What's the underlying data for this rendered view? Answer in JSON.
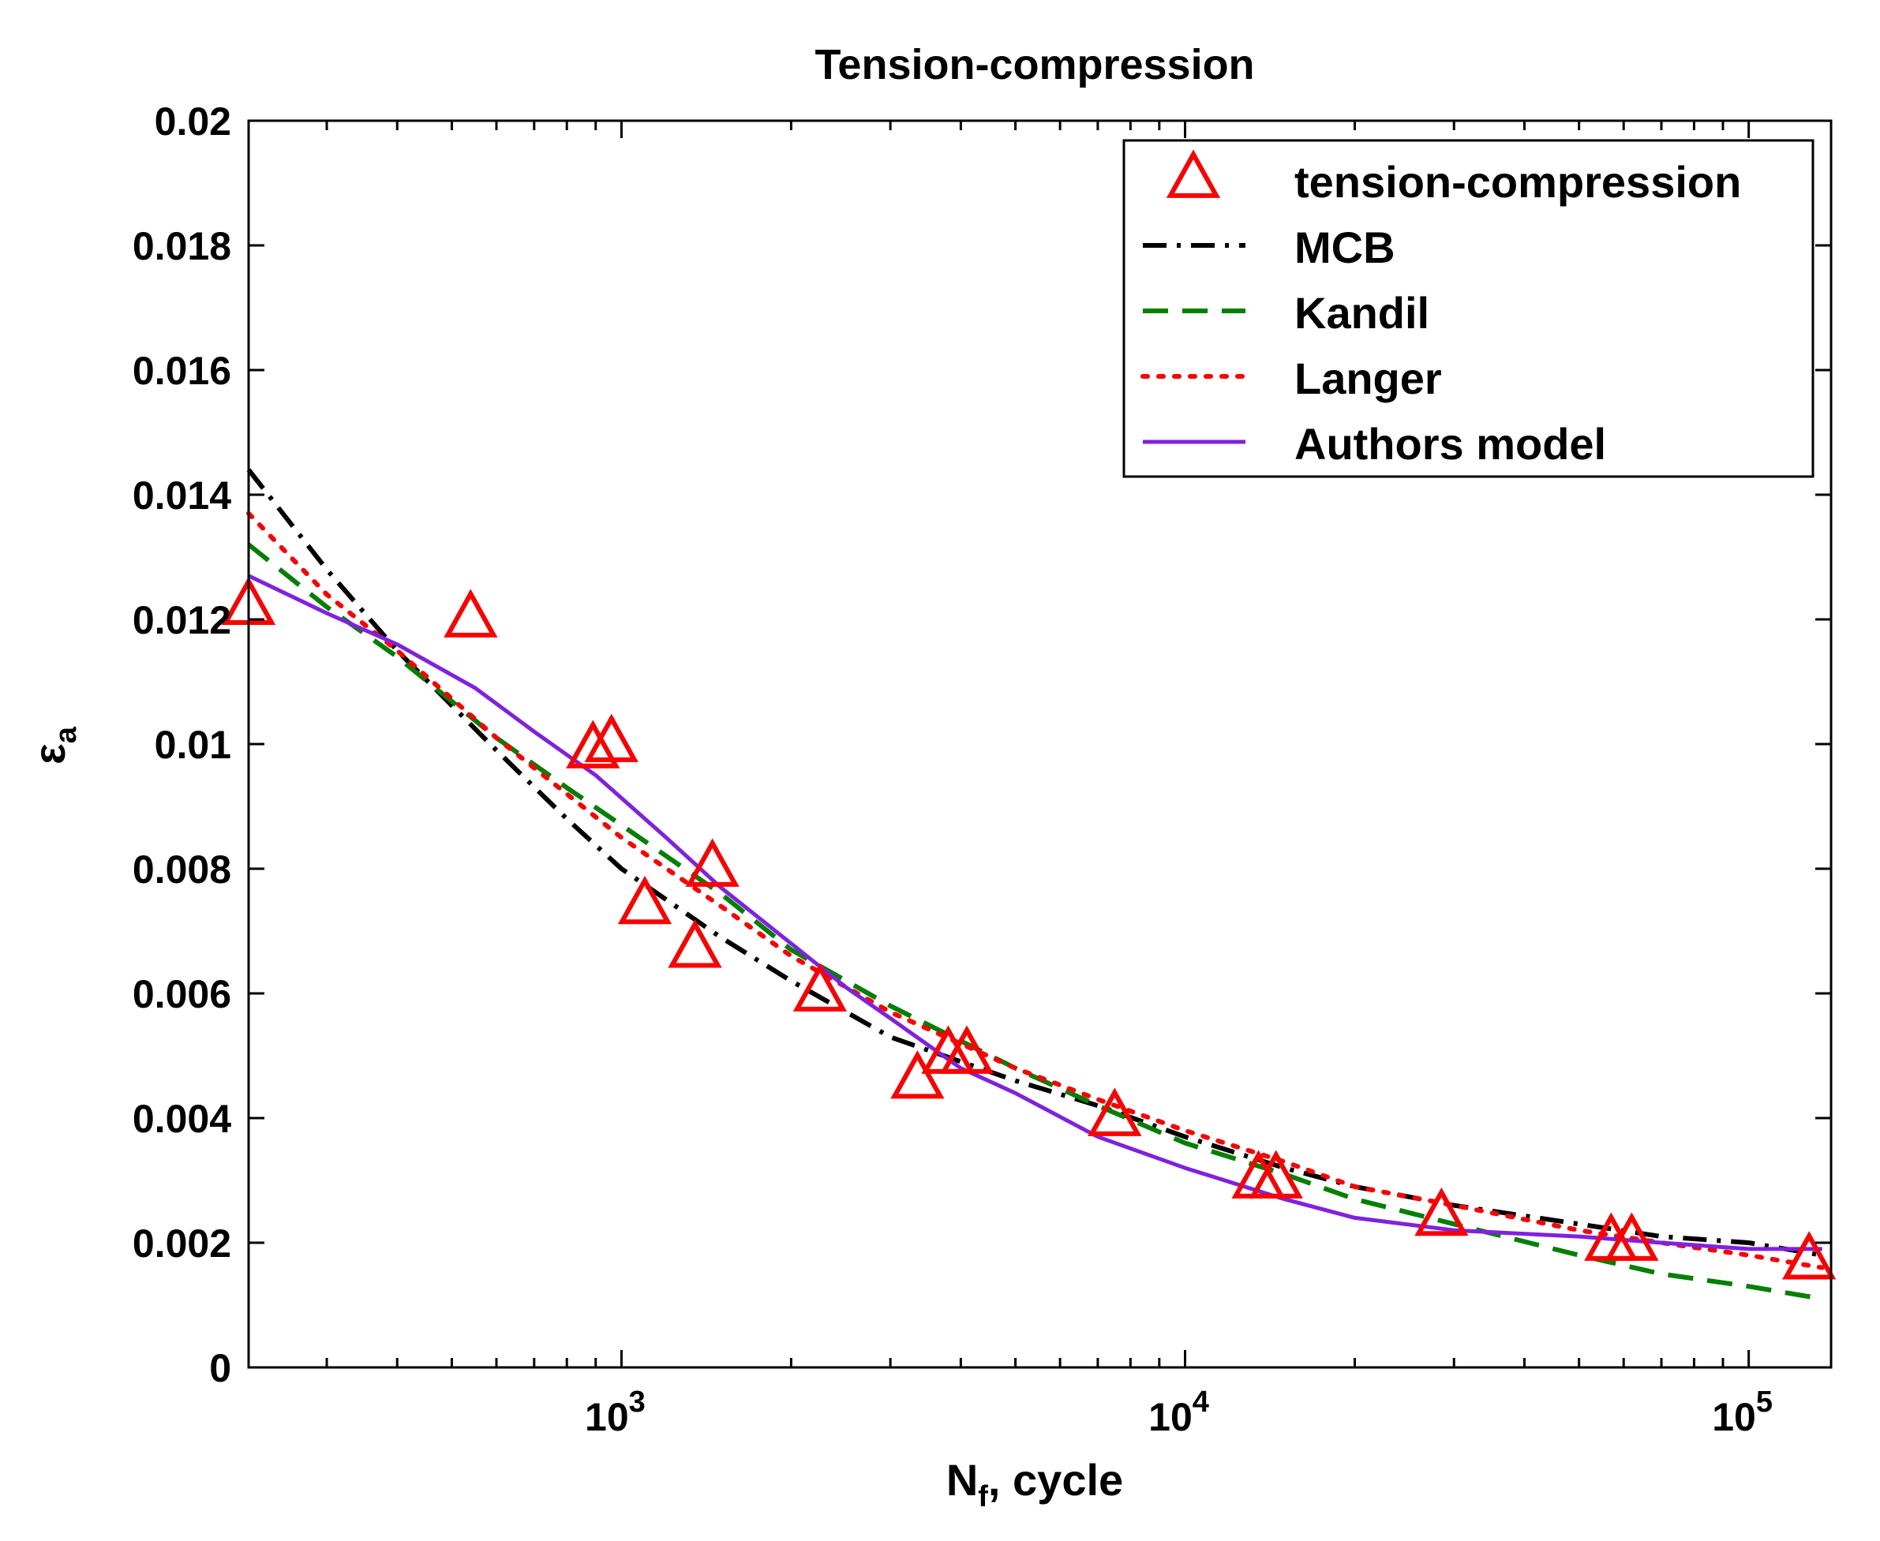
{
  "chart_data": {
    "type": "line",
    "title": "Tension-compression",
    "xlabel": {
      "main": "N",
      "sub": "f",
      "rest": ", cycle"
    },
    "ylabel": {
      "main": "ε",
      "sub": "a"
    },
    "xscale": "log",
    "xlim": [
      218,
      140000
    ],
    "ylim": [
      0,
      0.02
    ],
    "y_ticks": [
      {
        "value": 0,
        "label": "0"
      },
      {
        "value": 0.002,
        "label": "0.002"
      },
      {
        "value": 0.004,
        "label": "0.004"
      },
      {
        "value": 0.006,
        "label": "0.006"
      },
      {
        "value": 0.008,
        "label": "0.008"
      },
      {
        "value": 0.01,
        "label": "0.01"
      },
      {
        "value": 0.012,
        "label": "0.012"
      },
      {
        "value": 0.014,
        "label": "0.014"
      },
      {
        "value": 0.016,
        "label": "0.016"
      },
      {
        "value": 0.018,
        "label": "0.018"
      },
      {
        "value": 0.02,
        "label": "0.02"
      }
    ],
    "x_major_ticks": [
      {
        "value": 1000,
        "base": "10",
        "exp": "3"
      },
      {
        "value": 10000,
        "base": "10",
        "exp": "4"
      },
      {
        "value": 100000,
        "base": "10",
        "exp": "5"
      }
    ],
    "legend_position": "top-right",
    "grid": false,
    "series": [
      {
        "name": "tension-compression",
        "style": "markers",
        "marker": "triangle",
        "color": "#ff0000",
        "points": [
          [
            218,
            0.0122
          ],
          [
            540,
            0.012
          ],
          [
            890,
            0.0099
          ],
          [
            960,
            0.01
          ],
          [
            1100,
            0.0074
          ],
          [
            1350,
            0.0067
          ],
          [
            1450,
            0.008
          ],
          [
            2250,
            0.006
          ],
          [
            3350,
            0.0046
          ],
          [
            3800,
            0.005
          ],
          [
            4100,
            0.005
          ],
          [
            7500,
            0.004
          ],
          [
            13500,
            0.003
          ],
          [
            14500,
            0.003
          ],
          [
            28500,
            0.0024
          ],
          [
            57000,
            0.002
          ],
          [
            62000,
            0.002
          ],
          [
            128000,
            0.0017
          ]
        ]
      },
      {
        "name": "MCB",
        "style": "dashdot",
        "color": "#000000",
        "points": [
          [
            218,
            0.0144
          ],
          [
            300,
            0.0128
          ],
          [
            400,
            0.0115
          ],
          [
            600,
            0.0099
          ],
          [
            800,
            0.0088
          ],
          [
            1000,
            0.008
          ],
          [
            1500,
            0.0069
          ],
          [
            2000,
            0.0062
          ],
          [
            3000,
            0.0053
          ],
          [
            5000,
            0.0046
          ],
          [
            7000,
            0.0042
          ],
          [
            10000,
            0.0037
          ],
          [
            15000,
            0.0032
          ],
          [
            20000,
            0.0029
          ],
          [
            30000,
            0.0026
          ],
          [
            50000,
            0.0023
          ],
          [
            70000,
            0.0021
          ],
          [
            100000,
            0.002
          ],
          [
            135000,
            0.0018
          ]
        ]
      },
      {
        "name": "Kandil",
        "style": "dashed",
        "color": "#008000",
        "points": [
          [
            218,
            0.0132
          ],
          [
            300,
            0.0122
          ],
          [
            400,
            0.0114
          ],
          [
            600,
            0.0101
          ],
          [
            800,
            0.0093
          ],
          [
            1000,
            0.0087
          ],
          [
            1500,
            0.0076
          ],
          [
            2000,
            0.0067
          ],
          [
            3000,
            0.0058
          ],
          [
            5000,
            0.0048
          ],
          [
            7000,
            0.0042
          ],
          [
            10000,
            0.0036
          ],
          [
            15000,
            0.0031
          ],
          [
            20000,
            0.0027
          ],
          [
            30000,
            0.0023
          ],
          [
            50000,
            0.0018
          ],
          [
            70000,
            0.0015
          ],
          [
            100000,
            0.0013
          ],
          [
            135000,
            0.0011
          ]
        ]
      },
      {
        "name": "Langer",
        "style": "dotted",
        "color": "#ff0000",
        "points": [
          [
            218,
            0.0137
          ],
          [
            300,
            0.0124
          ],
          [
            400,
            0.0115
          ],
          [
            600,
            0.0101
          ],
          [
            800,
            0.0092
          ],
          [
            1000,
            0.0085
          ],
          [
            1500,
            0.0074
          ],
          [
            2000,
            0.0066
          ],
          [
            3000,
            0.0057
          ],
          [
            5000,
            0.0048
          ],
          [
            7000,
            0.0043
          ],
          [
            10000,
            0.0038
          ],
          [
            15000,
            0.0033
          ],
          [
            20000,
            0.0029
          ],
          [
            30000,
            0.0026
          ],
          [
            50000,
            0.0022
          ],
          [
            70000,
            0.002
          ],
          [
            100000,
            0.0018
          ],
          [
            135000,
            0.0016
          ]
        ]
      },
      {
        "name": "Authors model",
        "style": "solid",
        "color": "#8020e0",
        "points": [
          [
            218,
            0.0127
          ],
          [
            300,
            0.0121
          ],
          [
            400,
            0.0116
          ],
          [
            550,
            0.0109
          ],
          [
            700,
            0.0102
          ],
          [
            900,
            0.0095
          ],
          [
            1200,
            0.0085
          ],
          [
            1500,
            0.0077
          ],
          [
            2000,
            0.0068
          ],
          [
            2500,
            0.0061
          ],
          [
            3000,
            0.0056
          ],
          [
            4000,
            0.0048
          ],
          [
            5000,
            0.0044
          ],
          [
            7000,
            0.0037
          ],
          [
            10000,
            0.0032
          ],
          [
            15000,
            0.0027
          ],
          [
            20000,
            0.0024
          ],
          [
            30000,
            0.0022
          ],
          [
            50000,
            0.0021
          ],
          [
            70000,
            0.002
          ],
          [
            100000,
            0.0019
          ],
          [
            135000,
            0.0019
          ]
        ]
      }
    ]
  }
}
